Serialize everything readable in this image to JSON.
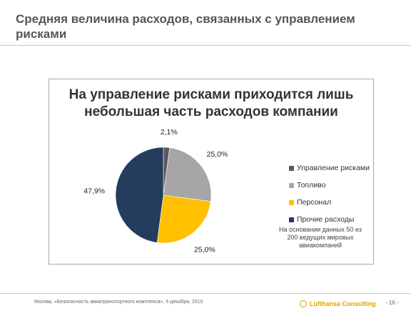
{
  "slide": {
    "title": "Средняя величина расходов, связанных с управлением рисками"
  },
  "chart_data": {
    "type": "pie",
    "title": "На управление рисками приходится лишь небольшая часть расходов компании",
    "categories": [
      "Управление рисками",
      "Топливо",
      "Персонал",
      "Прочие расходы"
    ],
    "values": [
      2.1,
      25.0,
      25.0,
      47.9
    ],
    "value_labels": [
      "2,1%",
      "25,0%",
      "25,0%",
      "47,9%"
    ],
    "colors": [
      "#595959",
      "#a6a6a6",
      "#ffc000",
      "#243c5e"
    ],
    "legend_position": "right",
    "note": "На основании данных 50 из 200 ведущих мировых авиакомпаний"
  },
  "footer": {
    "left_text": "Москва, «Безопасность авиатранспортного комплекса», 6 декабря, 2010",
    "logo_text": "Lufthansa Consulting",
    "page": "- 16 -"
  }
}
